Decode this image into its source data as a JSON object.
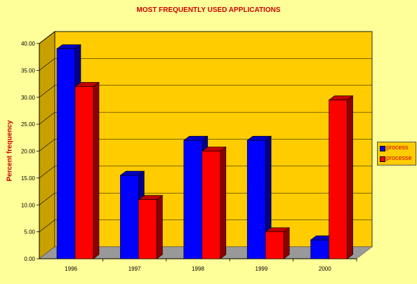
{
  "chart_data": {
    "type": "bar",
    "title": "MOST FREQUENTLY USED APPLICATIONS",
    "ylabel": "Percent frequency",
    "xlabel": "",
    "categories": [
      "1996",
      "1997",
      "1998",
      "1999",
      "2000"
    ],
    "y_ticks": [
      "0.00",
      "5.00",
      "10.00",
      "15.00",
      "20.00",
      "25.00",
      "30.00",
      "35.00",
      "40.00"
    ],
    "ylim": [
      0,
      40
    ],
    "grid": true,
    "legend_position": "right",
    "series": [
      {
        "name": "process",
        "color": "#0000ff",
        "values": [
          39,
          15.5,
          22,
          22,
          3.5
        ]
      },
      {
        "name": "processe",
        "color": "#ff0000",
        "values": [
          32,
          11,
          20,
          5,
          29.5
        ]
      }
    ]
  },
  "colors": {
    "background": "#ffff99",
    "plot_back": "#ffcc00",
    "floor": "#999999",
    "title": "#cc0000"
  }
}
